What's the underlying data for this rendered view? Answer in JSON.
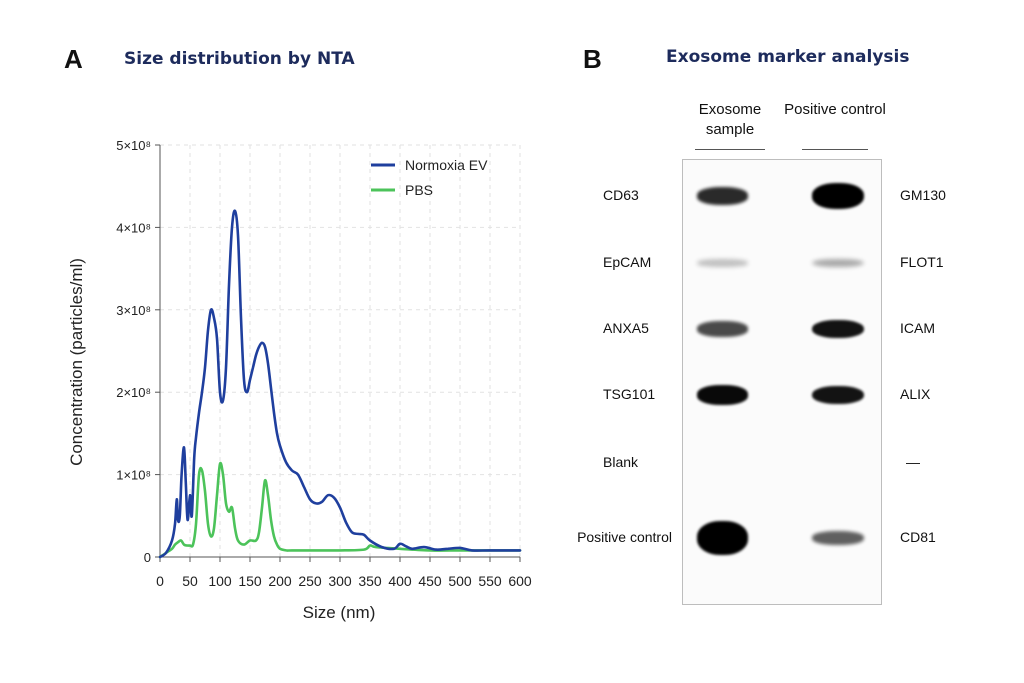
{
  "panel_a": {
    "letter": "A",
    "title": "Size distribution by NTA"
  },
  "panel_b": {
    "letter": "B",
    "title": "Exosome marker analysis",
    "columns": [
      "Exosome sample",
      "Positive control"
    ],
    "rows": [
      {
        "left_label": "CD63",
        "right_label": "GM130",
        "sample_intensity": 0.8,
        "control_intensity": 1.0
      },
      {
        "left_label": "EpCAM",
        "right_label": "FLOT1",
        "sample_intensity": 0.1,
        "control_intensity": 0.2
      },
      {
        "left_label": "ANXA5",
        "right_label": "ICAM",
        "sample_intensity": 0.65,
        "control_intensity": 0.9
      },
      {
        "left_label": "TSG101",
        "right_label": "ALIX",
        "sample_intensity": 0.95,
        "control_intensity": 0.9
      },
      {
        "left_label": "Blank",
        "right_label": "—",
        "sample_intensity": 0,
        "control_intensity": 0
      },
      {
        "left_label": "Positive control",
        "right_label": "CD81",
        "sample_intensity": 1.0,
        "control_intensity": 0.55
      }
    ],
    "band_color": "#000000"
  },
  "chart_data": {
    "type": "line",
    "title": "Size distribution by NTA",
    "xlabel": "Size (nm)",
    "ylabel": "Concentration (particles/ml)",
    "xlim": [
      0,
      600
    ],
    "ylim": [
      0,
      500000000
    ],
    "xticks": [
      0,
      50,
      100,
      150,
      200,
      250,
      300,
      350,
      400,
      450,
      500,
      550,
      600
    ],
    "yticks": [
      {
        "value": 0,
        "label": "0"
      },
      {
        "value": 100000000,
        "label": "1×10⁸"
      },
      {
        "value": 200000000,
        "label": "2×10⁸"
      },
      {
        "value": 300000000,
        "label": "3×10⁸"
      },
      {
        "value": 400000000,
        "label": "4×10⁸"
      },
      {
        "value": 500000000,
        "label": "5×10⁸"
      }
    ],
    "grid": true,
    "legend_position": "top-right",
    "series": [
      {
        "name": "Normoxia EV",
        "color": "#1f3f9e",
        "x": [
          0,
          10,
          20,
          25,
          28,
          30,
          33,
          36,
          40,
          43,
          46,
          50,
          53,
          57,
          60,
          65,
          70,
          75,
          80,
          85,
          90,
          95,
          100,
          105,
          110,
          115,
          120,
          125,
          130,
          135,
          140,
          145,
          150,
          155,
          160,
          165,
          170,
          175,
          180,
          185,
          190,
          195,
          200,
          210,
          220,
          230,
          240,
          250,
          260,
          270,
          280,
          290,
          300,
          310,
          320,
          330,
          340,
          350,
          370,
          390,
          400,
          410,
          420,
          440,
          460,
          480,
          500,
          520,
          550,
          600
        ],
        "y": [
          0,
          5000000,
          20000000,
          40000000,
          70000000,
          45000000,
          50000000,
          100000000,
          133000000,
          90000000,
          45000000,
          75000000,
          50000000,
          120000000,
          145000000,
          175000000,
          200000000,
          230000000,
          275000000,
          300000000,
          290000000,
          265000000,
          200000000,
          190000000,
          230000000,
          330000000,
          400000000,
          420000000,
          390000000,
          290000000,
          215000000,
          200000000,
          215000000,
          230000000,
          245000000,
          255000000,
          260000000,
          255000000,
          235000000,
          205000000,
          175000000,
          150000000,
          135000000,
          115000000,
          105000000,
          100000000,
          85000000,
          70000000,
          65000000,
          67000000,
          75000000,
          72000000,
          60000000,
          42000000,
          30000000,
          28000000,
          27000000,
          20000000,
          12000000,
          10000000,
          16000000,
          13000000,
          10000000,
          12000000,
          9000000,
          10000000,
          11000000,
          8000000,
          8000000,
          8000000
        ]
      },
      {
        "name": "PBS",
        "color": "#4cc35a",
        "x": [
          0,
          10,
          20,
          25,
          30,
          35,
          40,
          45,
          50,
          55,
          60,
          65,
          70,
          75,
          80,
          85,
          90,
          95,
          100,
          105,
          110,
          115,
          120,
          125,
          130,
          140,
          150,
          160,
          165,
          170,
          175,
          180,
          185,
          190,
          195,
          200,
          210,
          220,
          250,
          300,
          340,
          350,
          360,
          400,
          450,
          500,
          550,
          600
        ],
        "y": [
          0,
          5000000,
          10000000,
          15000000,
          18000000,
          20000000,
          15000000,
          14000000,
          14000000,
          15000000,
          40000000,
          100000000,
          105000000,
          80000000,
          40000000,
          25000000,
          35000000,
          75000000,
          113000000,
          100000000,
          65000000,
          55000000,
          60000000,
          35000000,
          20000000,
          15000000,
          20000000,
          20000000,
          30000000,
          60000000,
          93000000,
          75000000,
          45000000,
          25000000,
          15000000,
          10000000,
          8000000,
          8000000,
          8000000,
          8000000,
          9000000,
          14000000,
          12000000,
          10000000,
          8000000,
          8000000,
          8000000,
          8000000
        ]
      }
    ]
  }
}
